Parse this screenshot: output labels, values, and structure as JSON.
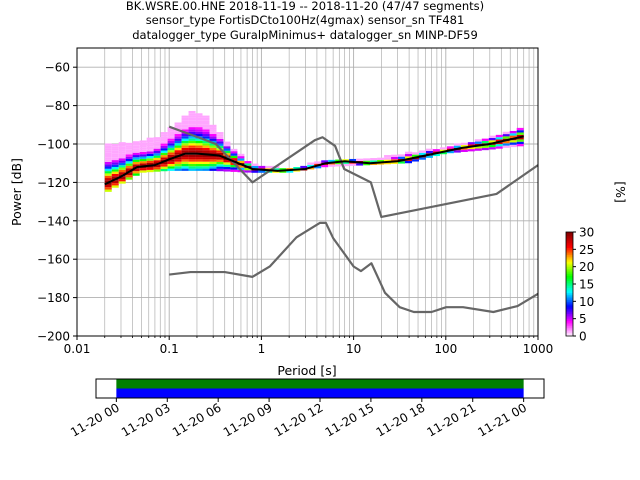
{
  "title": {
    "line1": "BK.WSRE.00.HNE   2018-11-19 -- 2018-11-20  (47/47 segments)",
    "line2": "sensor_type FortisDCto100Hz(4gmax) sensor_sn TF481",
    "line3": "datalogger_type GuralpMinimus+ datalogger_sn MINP-DF59"
  },
  "chart_data": [
    {
      "type": "heatmap",
      "xlabel": "Period [s]",
      "ylabel": "Power [dB]",
      "xscale": "log",
      "xlim": [
        0.01,
        1000
      ],
      "ylim": [
        -200,
        -50
      ],
      "x_ticks": [
        0.01,
        0.1,
        1,
        10,
        100,
        1000
      ],
      "x_tick_labels": [
        "0.01",
        "0.1",
        "1",
        "10",
        "100",
        "1000"
      ],
      "y_ticks": [
        -200,
        -180,
        -160,
        -140,
        -120,
        -100,
        -80,
        -60
      ],
      "y_tick_labels": [
        "−200",
        "−180",
        "−160",
        "−140",
        "−120",
        "−100",
        "−80",
        "−60"
      ],
      "grid": true,
      "colorbar": {
        "label": "[%]",
        "range": [
          0,
          30
        ],
        "ticks": [
          0,
          5,
          10,
          15,
          20,
          25,
          30
        ],
        "tick_labels": [
          "0",
          "5",
          "10",
          "15",
          "20",
          "25",
          "30"
        ],
        "colors": [
          "#ffffff",
          "#ff00ff",
          "#0000ff",
          "#00ffff",
          "#00ff00",
          "#ffff00",
          "#ff0000",
          "#800000"
        ]
      },
      "series": [
        {
          "role": "new-high-noise-model",
          "color": "#666666",
          "points": [
            [
              0.1,
              -91
            ],
            [
              0.22,
              -97
            ],
            [
              0.32,
              -100
            ],
            [
              0.8,
              -120
            ],
            [
              3.8,
              -98
            ],
            [
              4.6,
              -96.5
            ],
            [
              6.3,
              -101
            ],
            [
              7.9,
              -113
            ],
            [
              15.4,
              -120
            ],
            [
              20,
              -138
            ],
            [
              354.8,
              -126
            ],
            [
              1000,
              -111
            ]
          ]
        },
        {
          "role": "new-low-noise-model",
          "color": "#666666",
          "points": [
            [
              0.1,
              -168
            ],
            [
              0.17,
              -166.7
            ],
            [
              0.4,
              -166.7
            ],
            [
              0.8,
              -169.2
            ],
            [
              1.24,
              -163.7
            ],
            [
              2.4,
              -148.6
            ],
            [
              4.3,
              -141.1
            ],
            [
              5,
              -141.1
            ],
            [
              6,
              -149
            ],
            [
              10,
              -163.8
            ],
            [
              12,
              -166.2
            ],
            [
              15.6,
              -162.1
            ],
            [
              21.9,
              -177.5
            ],
            [
              31.6,
              -185
            ],
            [
              45,
              -187.5
            ],
            [
              70,
              -187.5
            ],
            [
              101,
              -185
            ],
            [
              154,
              -185
            ],
            [
              328,
              -187.5
            ],
            [
              600,
              -184.4
            ],
            [
              1000,
              -178
            ]
          ]
        },
        {
          "role": "mean-psd",
          "color": "#000000",
          "points": [
            [
              0.02,
              -121
            ],
            [
              0.03,
              -117
            ],
            [
              0.045,
              -112
            ],
            [
              0.07,
              -111
            ],
            [
              0.1,
              -108
            ],
            [
              0.15,
              -105
            ],
            [
              0.2,
              -105
            ],
            [
              0.35,
              -106
            ],
            [
              0.5,
              -109
            ],
            [
              0.8,
              -113
            ],
            [
              1.5,
              -114
            ],
            [
              3,
              -113
            ],
            [
              5,
              -110
            ],
            [
              8,
              -109
            ],
            [
              15,
              -110
            ],
            [
              30,
              -109
            ],
            [
              60,
              -106
            ],
            [
              150,
              -102
            ],
            [
              300,
              -100
            ],
            [
              700,
              -96
            ]
          ]
        },
        {
          "role": "psd-band-upper",
          "color": "#ff00ff",
          "points": [
            [
              0.03,
              -100
            ],
            [
              0.05,
              -99
            ],
            [
              0.08,
              -96
            ],
            [
              0.12,
              -90
            ],
            [
              0.18,
              -83
            ],
            [
              0.25,
              -86
            ],
            [
              0.35,
              -94
            ],
            [
              0.5,
              -103
            ],
            [
              0.8,
              -111
            ],
            [
              2,
              -113
            ],
            [
              5,
              -109
            ],
            [
              15,
              -108
            ],
            [
              40,
              -105
            ],
            [
              100,
              -102
            ],
            [
              200,
              -99
            ],
            [
              500,
              -94
            ],
            [
              700,
              -91
            ]
          ]
        },
        {
          "role": "psd-band-lower",
          "color": "#ff00ff",
          "points": [
            [
              0.02,
              -126
            ],
            [
              0.03,
              -121
            ],
            [
              0.05,
              -115
            ],
            [
              0.1,
              -114
            ],
            [
              0.3,
              -114
            ],
            [
              0.8,
              -115
            ],
            [
              2,
              -115
            ],
            [
              5,
              -112
            ],
            [
              15,
              -111
            ],
            [
              40,
              -110
            ],
            [
              100,
              -105
            ],
            [
              300,
              -103
            ],
            [
              700,
              -101
            ]
          ]
        }
      ]
    },
    {
      "type": "timeline",
      "x_tick_labels": [
        "11-20 00",
        "11-20 03",
        "11-20 06",
        "11-20 09",
        "11-20 12",
        "11-20 15",
        "11-20 18",
        "11-20 21",
        "11-21 00"
      ],
      "x_ticks_hours": [
        0,
        3,
        6,
        9,
        12,
        15,
        18,
        21,
        24
      ],
      "xlim_hours": [
        -1.2,
        25.2
      ],
      "data_coverage_hours": [
        0,
        24
      ],
      "colors": {
        "coverage": "#008000",
        "processed": "#0000ff"
      }
    }
  ]
}
